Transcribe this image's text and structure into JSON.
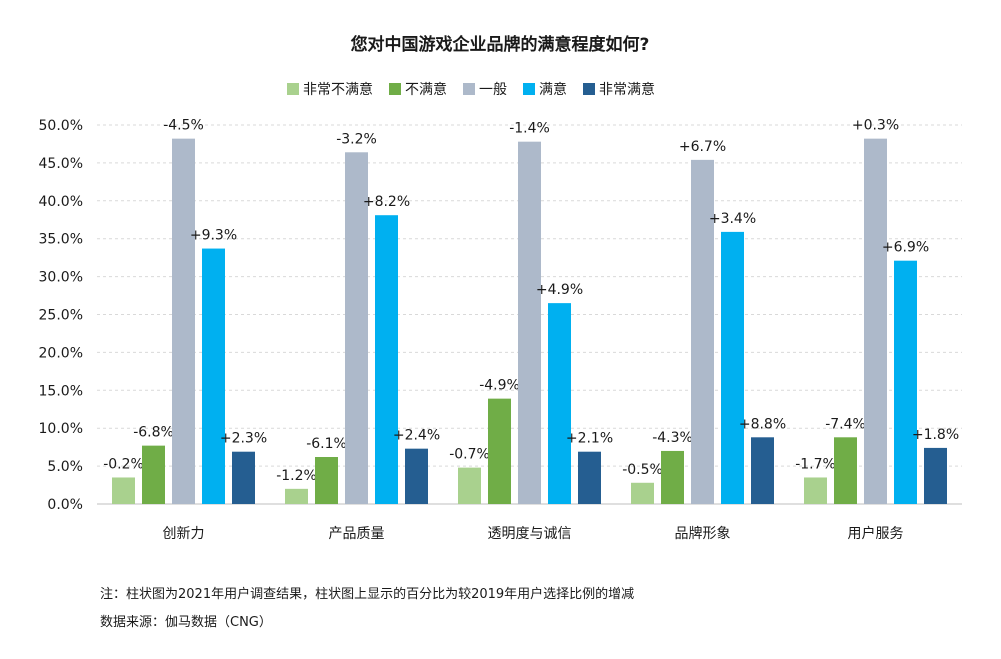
{
  "chart_data": {
    "type": "bar",
    "title": "您对中国游戏企业品牌的满意程度如何?",
    "categories": [
      "创新力",
      "产品质量",
      "透明度与诚信",
      "品牌形象",
      "用户服务"
    ],
    "series": [
      {
        "name": "非常不满意",
        "color": "#a9d18e",
        "values": [
          3.5,
          2.0,
          4.8,
          2.8,
          3.5
        ],
        "labels": [
          "-0.2%",
          "-1.2%",
          "-0.7%",
          "-0.5%",
          "-1.7%"
        ]
      },
      {
        "name": "不满意",
        "color": "#70ad47",
        "values": [
          7.7,
          6.2,
          13.9,
          7.0,
          8.8
        ],
        "labels": [
          "-6.8%",
          "-6.1%",
          "-4.9%",
          "-4.3%",
          "-7.4%"
        ]
      },
      {
        "name": "一般",
        "color": "#adb9ca",
        "values": [
          48.2,
          46.4,
          47.8,
          45.4,
          48.2
        ],
        "labels": [
          "-4.5%",
          "-3.2%",
          "-1.4%",
          "+6.7%",
          "+0.3%"
        ]
      },
      {
        "name": "满意",
        "color": "#00b0f0",
        "values": [
          33.7,
          38.1,
          26.5,
          35.9,
          32.1
        ],
        "labels": [
          "+9.3%",
          "+8.2%",
          "+4.9%",
          "+3.4%",
          "+6.9%"
        ]
      },
      {
        "name": "非常满意",
        "color": "#255e91",
        "values": [
          6.9,
          7.3,
          6.9,
          8.8,
          7.4
        ],
        "labels": [
          "+2.3%",
          "+2.4%",
          "+2.1%",
          "+8.8%",
          "+1.8%"
        ]
      }
    ],
    "highlight_label_color": "#2e75b6",
    "highlight_labels": [
      [
        4,
        3
      ]
    ],
    "yticks": [
      "0.0%",
      "5.0%",
      "10.0%",
      "15.0%",
      "20.0%",
      "25.0%",
      "30.0%",
      "35.0%",
      "40.0%",
      "45.0%",
      "50.0%"
    ],
    "ylim": [
      0,
      50
    ],
    "grid": true,
    "legend_position": "top-center"
  },
  "footnotes": {
    "note": "注：柱状图为2021年用户调查结果，柱状图上显示的百分比为较2019年用户选择比例的增减",
    "source": "数据来源：伽马数据（CNG）"
  }
}
